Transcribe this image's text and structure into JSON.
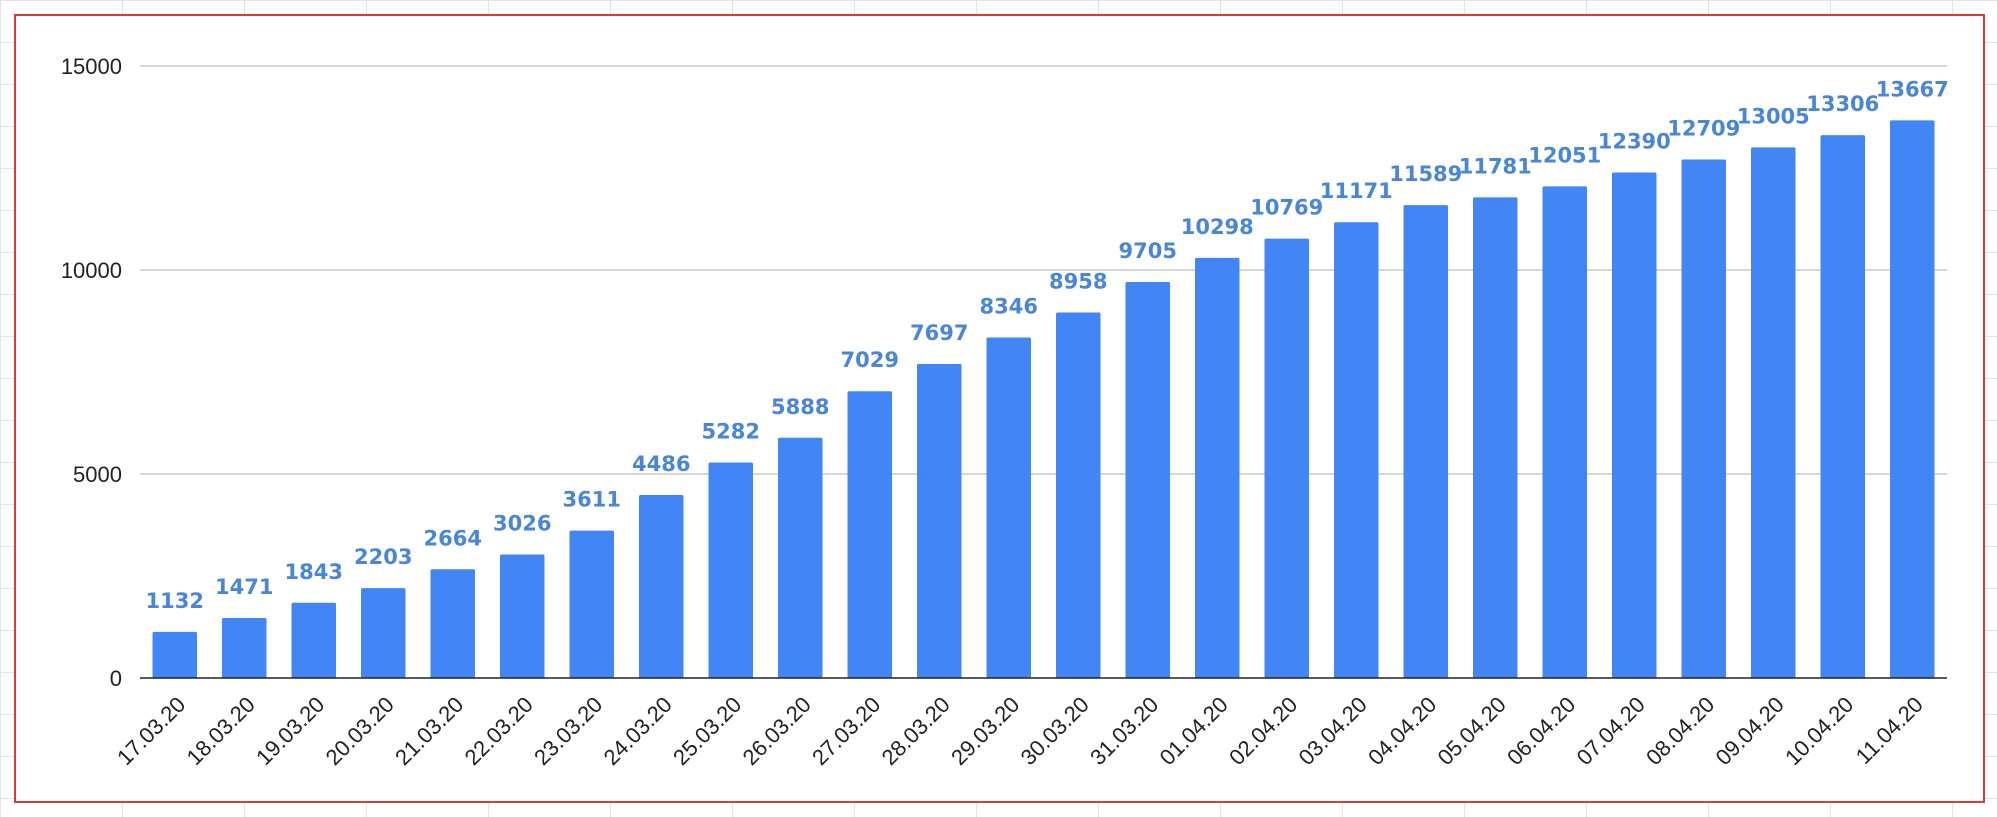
{
  "chart_data": {
    "type": "bar",
    "categories": [
      "17.03.20",
      "18.03.20",
      "19.03.20",
      "20.03.20",
      "21.03.20",
      "22.03.20",
      "23.03.20",
      "24.03.20",
      "25.03.20",
      "26.03.20",
      "27.03.20",
      "28.03.20",
      "29.03.20",
      "30.03.20",
      "31.03.20",
      "01.04.20",
      "02.04.20",
      "03.04.20",
      "04.04.20",
      "05.04.20",
      "06.04.20",
      "07.04.20",
      "08.04.20",
      "09.04.20",
      "10.04.20",
      "11.04.20"
    ],
    "values": [
      1132,
      1471,
      1843,
      2203,
      2664,
      3026,
      3611,
      4486,
      5282,
      5888,
      7029,
      7697,
      8346,
      8958,
      9705,
      10298,
      10769,
      11171,
      11589,
      11781,
      12051,
      12390,
      12709,
      13005,
      13306,
      13667
    ],
    "ylim": [
      0,
      15000
    ],
    "yticks": [
      0,
      5000,
      10000,
      15000
    ],
    "grid": true,
    "data_labels": true,
    "bar_color": "#4285f4",
    "label_color": "#4a86d8",
    "frame_color": "#d93a3a"
  }
}
